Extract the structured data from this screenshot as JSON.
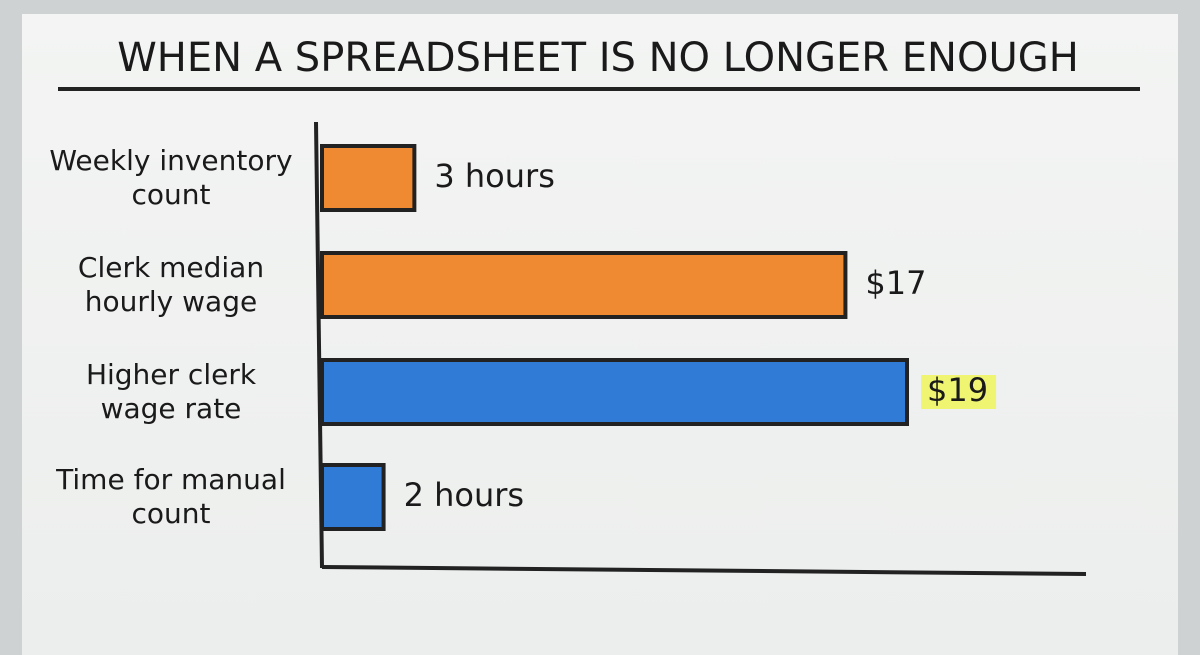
{
  "chart_data": {
    "type": "bar",
    "orientation": "horizontal",
    "title": "WHEN A SPREADSHEET IS NO LONGER ENOUGH",
    "categories": [
      "Weekly inventory count",
      "Clerk median hourly wage",
      "Higher clerk wage rate",
      "Time for manual count"
    ],
    "values": [
      3,
      17,
      19,
      2
    ],
    "value_labels": [
      "3 hours",
      "$17",
      "$19",
      "2 hours"
    ],
    "colors": [
      "#f08a32",
      "#f08a32",
      "#2f7bd6",
      "#2f7bd6"
    ],
    "value_highlights": [
      null,
      null,
      "#eef65a",
      null
    ]
  }
}
